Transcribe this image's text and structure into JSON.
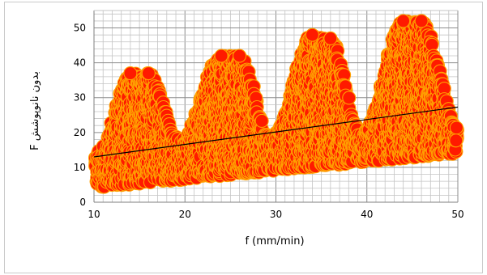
{
  "chart_data": {
    "type": "scatter",
    "title": "",
    "xlabel": "f (mm/min)",
    "ylabel": "F بدون نانوپوشش",
    "xlim": [
      10,
      50
    ],
    "ylim": [
      0,
      55
    ],
    "x_ticks": [
      "10",
      "20",
      "30",
      "40",
      "50"
    ],
    "y_ticks": [
      "0",
      "10",
      "20",
      "30",
      "40",
      "50"
    ],
    "grid": "major and minor",
    "legend": "none",
    "marker_fill": "#ff1a00",
    "marker_edge": "#ffa000",
    "trendline_color": "#000000",
    "trendline": {
      "type": "linear",
      "points": [
        [
          10,
          13
        ],
        [
          50,
          27.3
        ]
      ]
    },
    "envelope": {
      "note": "dense marker cloud; each peak listed as [x, top of cloud]",
      "peaks": [
        [
          14,
          37
        ],
        [
          16,
          37
        ],
        [
          24,
          42
        ],
        [
          26,
          42
        ],
        [
          34,
          48
        ],
        [
          36,
          47
        ],
        [
          44,
          52
        ],
        [
          46,
          52
        ]
      ],
      "valleys": [
        [
          10.5,
          15
        ],
        [
          19.5,
          18
        ],
        [
          29.5,
          19
        ],
        [
          39.5,
          20
        ],
        [
          50,
          23
        ]
      ]
    }
  }
}
